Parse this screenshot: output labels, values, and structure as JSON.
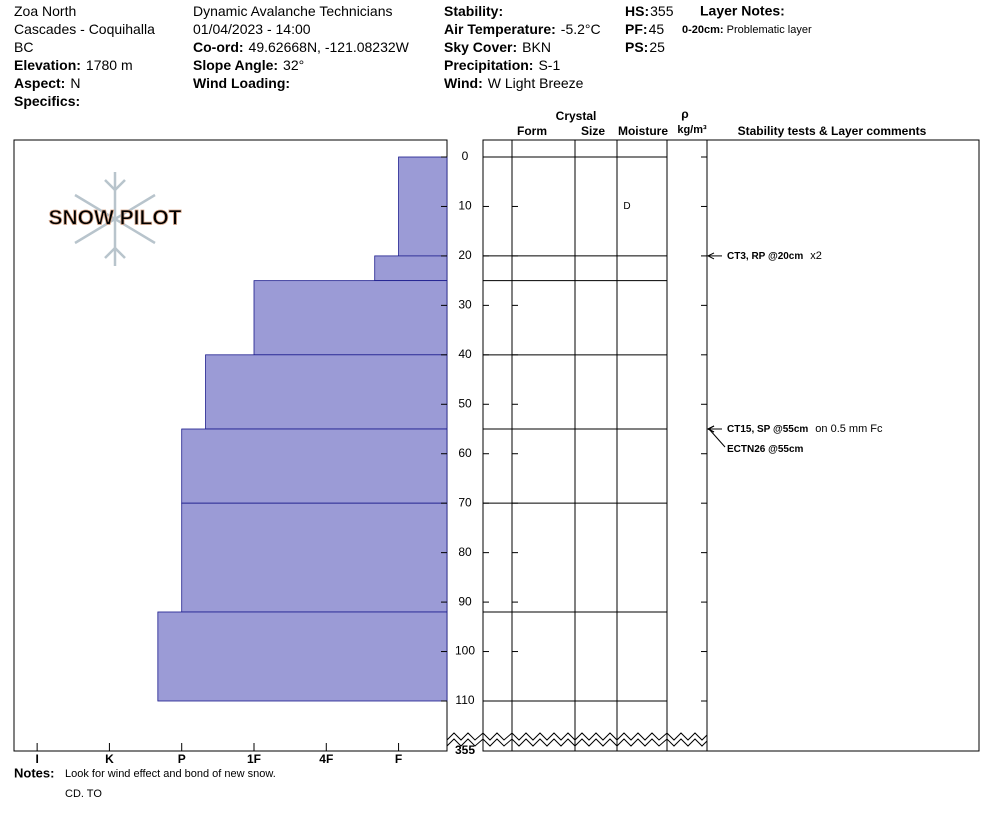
{
  "header": {
    "columns": [
      [
        {
          "text": "Zoa North"
        },
        {
          "text": "Cascades - Coquihalla"
        },
        {
          "text": "BC"
        },
        {
          "label": "Elevation:",
          "value": "1780 m"
        },
        {
          "label": "Aspect:",
          "value": "N"
        },
        {
          "label": "Specifics:"
        }
      ],
      [
        {
          "text": "Dynamic Avalanche Technicians"
        },
        {
          "text": "01/04/2023 - 14:00"
        },
        {
          "label": "Co-ord:",
          "value": "49.62668N, -121.08232W"
        },
        {
          "label": "Slope Angle:",
          "value": "32°"
        },
        {
          "label": "Wind Loading:"
        }
      ],
      [
        {
          "label": "Stability:"
        },
        {
          "label": "Air Temperature:",
          "value": "-5.2°C"
        },
        {
          "label": "Sky Cover:",
          "value": "BKN"
        },
        {
          "label": "Precipitation:",
          "value": "S-1"
        },
        {
          "label": "Wind:",
          "value": "W Light Breeze"
        }
      ],
      [
        {
          "label": "HS:",
          "value": 355
        },
        {
          "label": "PF:",
          "value": 45
        },
        {
          "label": "PS:",
          "value": 25
        }
      ]
    ],
    "layer_notes": {
      "title": "Layer Notes:",
      "label": "0-20cm:",
      "value": "Problematic layer"
    }
  },
  "chart_data": {
    "type": "snow-profile",
    "logo": "SNOW PILOT",
    "layers": {
      "tops": [
        0,
        20,
        25,
        40,
        55,
        70,
        92
      ],
      "bottoms": [
        20,
        25,
        40,
        55,
        70,
        92,
        110
      ],
      "hardness": [
        1,
        1.33,
        3,
        3.67,
        4,
        4,
        4.33
      ],
      "moisture": [
        "D",
        null,
        null,
        null,
        null,
        null,
        null
      ]
    },
    "xlim": [
      0.33,
      6.32
    ],
    "xticks": [
      {
        "value": 6,
        "label": "I"
      },
      {
        "value": 5,
        "label": "K"
      },
      {
        "value": 4,
        "label": "P"
      },
      {
        "value": 3,
        "label": "1F"
      },
      {
        "value": 2,
        "label": "4F"
      },
      {
        "value": 1,
        "label": "F"
      }
    ],
    "ylim": [
      0,
      110
    ],
    "yticks": [
      0,
      10,
      20,
      30,
      40,
      50,
      60,
      70,
      80,
      90,
      100,
      110
    ],
    "total_depth": 355,
    "bar_color": "#9b9bd6",
    "bar_edge": "#1a1a8c",
    "columns": {
      "crystal": "Crystal",
      "form": "Form",
      "size": "Size",
      "moisture": "Moisture",
      "density": "ρ",
      "density_unit": "kg/m³",
      "comments": "Stability tests & Layer comments"
    },
    "tests": [
      {
        "depth": 20,
        "result": "CT3, RP @20cm",
        "comment": "x2"
      },
      {
        "depth": 55,
        "result": "CT15, SP @55cm",
        "comment": "on 0.5 mm Fc"
      },
      {
        "depth": 55,
        "result": "ECTN26 @55cm"
      }
    ]
  },
  "footer": {
    "label": "Notes:",
    "value": "Look for wind effect and bond of new snow.",
    "observer": "CD. TO"
  }
}
